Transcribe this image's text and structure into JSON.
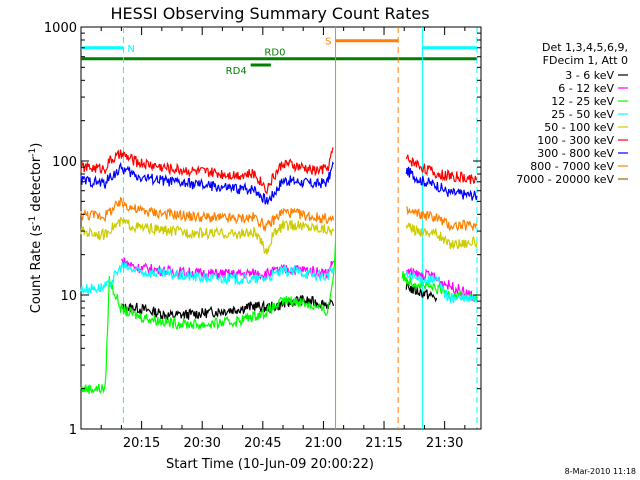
{
  "chart_data": {
    "type": "line",
    "title": "HESSI Observing Summary Count Rates",
    "xlabel": "Start Time (10-Jun-09 20:00:22)",
    "ylabel_main": "Count Rate (s",
    "ylabel_sup1": "-1",
    "ylabel_mid": " detector",
    "ylabel_sup2": "-1",
    "ylabel_end": ")",
    "yscale": "log",
    "ylim": [
      1,
      1000
    ],
    "xlim_minutes": [
      0,
      99
    ],
    "x_ticks": [
      {
        "label": "20:15",
        "t": 15
      },
      {
        "label": "20:30",
        "t": 30
      },
      {
        "label": "20:45",
        "t": 45
      },
      {
        "label": "21:00",
        "t": 60
      },
      {
        "label": "21:15",
        "t": 75
      },
      {
        "label": "21:30",
        "t": 90
      }
    ],
    "y_ticks": [
      {
        "label": "1",
        "v": 1
      },
      {
        "label": "10",
        "v": 10
      },
      {
        "label": "100",
        "v": 100
      },
      {
        "label": "1000",
        "v": 1000
      }
    ],
    "legend": {
      "placement": "right",
      "header": [
        "Det 1,3,4,5,6,9,",
        "FDecim 1, Att 0"
      ]
    },
    "series": [
      {
        "name": "3 - 6 keV",
        "color": "#000000",
        "segments": [
          [
            [
              10,
              8
            ],
            [
              14,
              8
            ],
            [
              22,
              7
            ],
            [
              30,
              7.3
            ],
            [
              38,
              7.8
            ],
            [
              43,
              8.3
            ],
            [
              46,
              8
            ],
            [
              50,
              8.5
            ],
            [
              54,
              9.2
            ],
            [
              58,
              8.8
            ],
            [
              61,
              8.5
            ],
            [
              62.5,
              8.3
            ]
          ],
          [
            [
              80.5,
              12
            ],
            [
              82,
              11
            ],
            [
              86,
              10
            ],
            [
              88,
              9.5
            ]
          ]
        ]
      },
      {
        "name": "6 - 12 keV",
        "color": "#ff00ff",
        "segments": [
          [
            [
              10,
              18
            ],
            [
              14,
              16
            ],
            [
              22,
              15
            ],
            [
              30,
              14.5
            ],
            [
              38,
              14.3
            ],
            [
              43,
              14.5
            ],
            [
              46,
              14.5
            ],
            [
              50,
              15.5
            ],
            [
              54,
              15.5
            ],
            [
              58,
              15
            ],
            [
              61,
              14.5
            ],
            [
              62.5,
              18
            ]
          ],
          [
            [
              80.5,
              15
            ],
            [
              84,
              14
            ],
            [
              87,
              14
            ],
            [
              88,
              13
            ],
            [
              98,
              9.5
            ]
          ]
        ]
      },
      {
        "name": "12 - 25 keV",
        "color": "#00ff00",
        "segments": [
          [
            [
              0,
              2
            ],
            [
              6,
              2
            ],
            [
              7,
              13
            ],
            [
              10,
              7.8
            ],
            [
              14,
              7
            ],
            [
              22,
              6.2
            ],
            [
              30,
              6
            ],
            [
              38,
              6.3
            ],
            [
              43,
              7
            ],
            [
              46,
              7.5
            ],
            [
              50,
              9
            ],
            [
              54,
              9
            ],
            [
              58,
              8.2
            ],
            [
              61,
              7.5
            ],
            [
              62.5,
              14
            ],
            [
              63,
              25
            ]
          ],
          [
            [
              79.5,
              14
            ],
            [
              80.5,
              13
            ],
            [
              84,
              12
            ],
            [
              88,
              11
            ],
            [
              98,
              9.2
            ]
          ]
        ]
      },
      {
        "name": "25 - 50 keV",
        "color": "#00ffff",
        "segments": [
          [
            [
              0,
              11
            ],
            [
              6,
              11.5
            ],
            [
              7,
              12
            ],
            [
              10,
              16.5
            ],
            [
              14,
              15
            ],
            [
              22,
              14.2
            ],
            [
              30,
              13.5
            ],
            [
              38,
              13.2
            ],
            [
              43,
              13
            ],
            [
              46,
              13.5
            ],
            [
              50,
              15
            ],
            [
              54,
              15
            ],
            [
              58,
              14
            ],
            [
              61,
              13.8
            ],
            [
              62.5,
              16
            ]
          ],
          [
            [
              80.5,
              14
            ],
            [
              84,
              13
            ],
            [
              88,
              13
            ],
            [
              91,
              9.5
            ],
            [
              98,
              9.3
            ]
          ]
        ]
      },
      {
        "name": "50 - 100 keV",
        "color": "#cccc00",
        "segments": [
          [
            [
              0,
              30
            ],
            [
              6,
              28
            ],
            [
              7,
              31
            ],
            [
              10,
              35
            ],
            [
              14,
              32
            ],
            [
              22,
              30
            ],
            [
              30,
              29
            ],
            [
              38,
              28.5
            ],
            [
              43,
              29
            ],
            [
              46,
              21
            ],
            [
              47.5,
              28
            ],
            [
              50,
              33
            ],
            [
              54,
              33
            ],
            [
              58,
              32
            ],
            [
              61,
              31
            ],
            [
              62.5,
              30
            ]
          ],
          [
            [
              80.5,
              32
            ],
            [
              84,
              30
            ],
            [
              88,
              29
            ],
            [
              91,
              24
            ],
            [
              98,
              25
            ]
          ]
        ]
      },
      {
        "name": "100 - 300 keV",
        "color": "#ff0000",
        "segments": [
          [
            [
              0,
              90
            ],
            [
              6,
              88
            ],
            [
              7,
              100
            ],
            [
              10,
              112
            ],
            [
              14,
              98
            ],
            [
              22,
              88
            ],
            [
              30,
              83
            ],
            [
              38,
              79
            ],
            [
              43,
              80
            ],
            [
              46,
              62
            ],
            [
              47.5,
              75
            ],
            [
              50,
              97
            ],
            [
              54,
              90
            ],
            [
              58,
              85
            ],
            [
              61,
              88
            ],
            [
              62.5,
              125
            ]
          ],
          [
            [
              80.5,
              105
            ],
            [
              84,
              92
            ],
            [
              88,
              80
            ],
            [
              91,
              78
            ],
            [
              98,
              72
            ]
          ]
        ]
      },
      {
        "name": "300 - 800 keV",
        "color": "#0000ff",
        "segments": [
          [
            [
              0,
              72
            ],
            [
              6,
              68
            ],
            [
              7,
              75
            ],
            [
              10,
              88
            ],
            [
              14,
              77
            ],
            [
              22,
              70
            ],
            [
              30,
              66
            ],
            [
              38,
              62
            ],
            [
              43,
              62
            ],
            [
              46,
              50
            ],
            [
              47.5,
              56
            ],
            [
              50,
              72
            ],
            [
              54,
              70
            ],
            [
              58,
              67
            ],
            [
              61,
              70
            ],
            [
              62.5,
              95
            ]
          ],
          [
            [
              80.5,
              85
            ],
            [
              84,
              72
            ],
            [
              88,
              66
            ],
            [
              91,
              58
            ],
            [
              98,
              55
            ]
          ]
        ]
      },
      {
        "name": "800 - 7000 keV",
        "color": "#ff8000",
        "segments": [
          [
            [
              0,
              40
            ],
            [
              6,
              39
            ],
            [
              7,
              42
            ],
            [
              10,
              49
            ],
            [
              14,
              43
            ],
            [
              22,
              40
            ],
            [
              30,
              38
            ],
            [
              38,
              37
            ],
            [
              43,
              38
            ],
            [
              46,
              32
            ],
            [
              47.5,
              36
            ],
            [
              50,
              42
            ],
            [
              54,
              40
            ],
            [
              58,
              38
            ],
            [
              61,
              37
            ],
            [
              62.5,
              36
            ]
          ],
          [
            [
              80.5,
              42
            ],
            [
              84,
              40
            ],
            [
              88,
              38
            ],
            [
              91,
              33
            ],
            [
              98,
              33
            ]
          ]
        ]
      },
      {
        "name": "7000 - 20000 keV",
        "color": "#996600",
        "segments": []
      }
    ],
    "annotations": [
      {
        "text": "N",
        "color": "#00ffff",
        "t0": 0,
        "t1": 10.5,
        "level": 700
      },
      {
        "text": "",
        "color": "#00ffff",
        "t0": 84.5,
        "t1": 98,
        "level": 700
      },
      {
        "text": "S",
        "color": "#ff8000",
        "t0": 63,
        "t1": 78.5,
        "level": 790
      },
      {
        "text": "RD0",
        "color": "#008000",
        "t0": 0,
        "t1": 98,
        "level": 580
      },
      {
        "text": "RD4",
        "color": "#008000",
        "t0": 42,
        "t1": 47,
        "level": 520
      }
    ],
    "vlines": [
      {
        "t": 10.5,
        "color": "#00ffff",
        "style": "dashed"
      },
      {
        "t": 84.5,
        "color": "#00ffff",
        "style": "solid"
      },
      {
        "t": 98,
        "color": "#00ffff",
        "style": "dashed"
      },
      {
        "t": 63,
        "color": "#ff8000",
        "style": "solid"
      },
      {
        "t": 78.5,
        "color": "#ff8000",
        "style": "dashed"
      }
    ]
  },
  "timestamp": "8-Mar-2010 11:18"
}
